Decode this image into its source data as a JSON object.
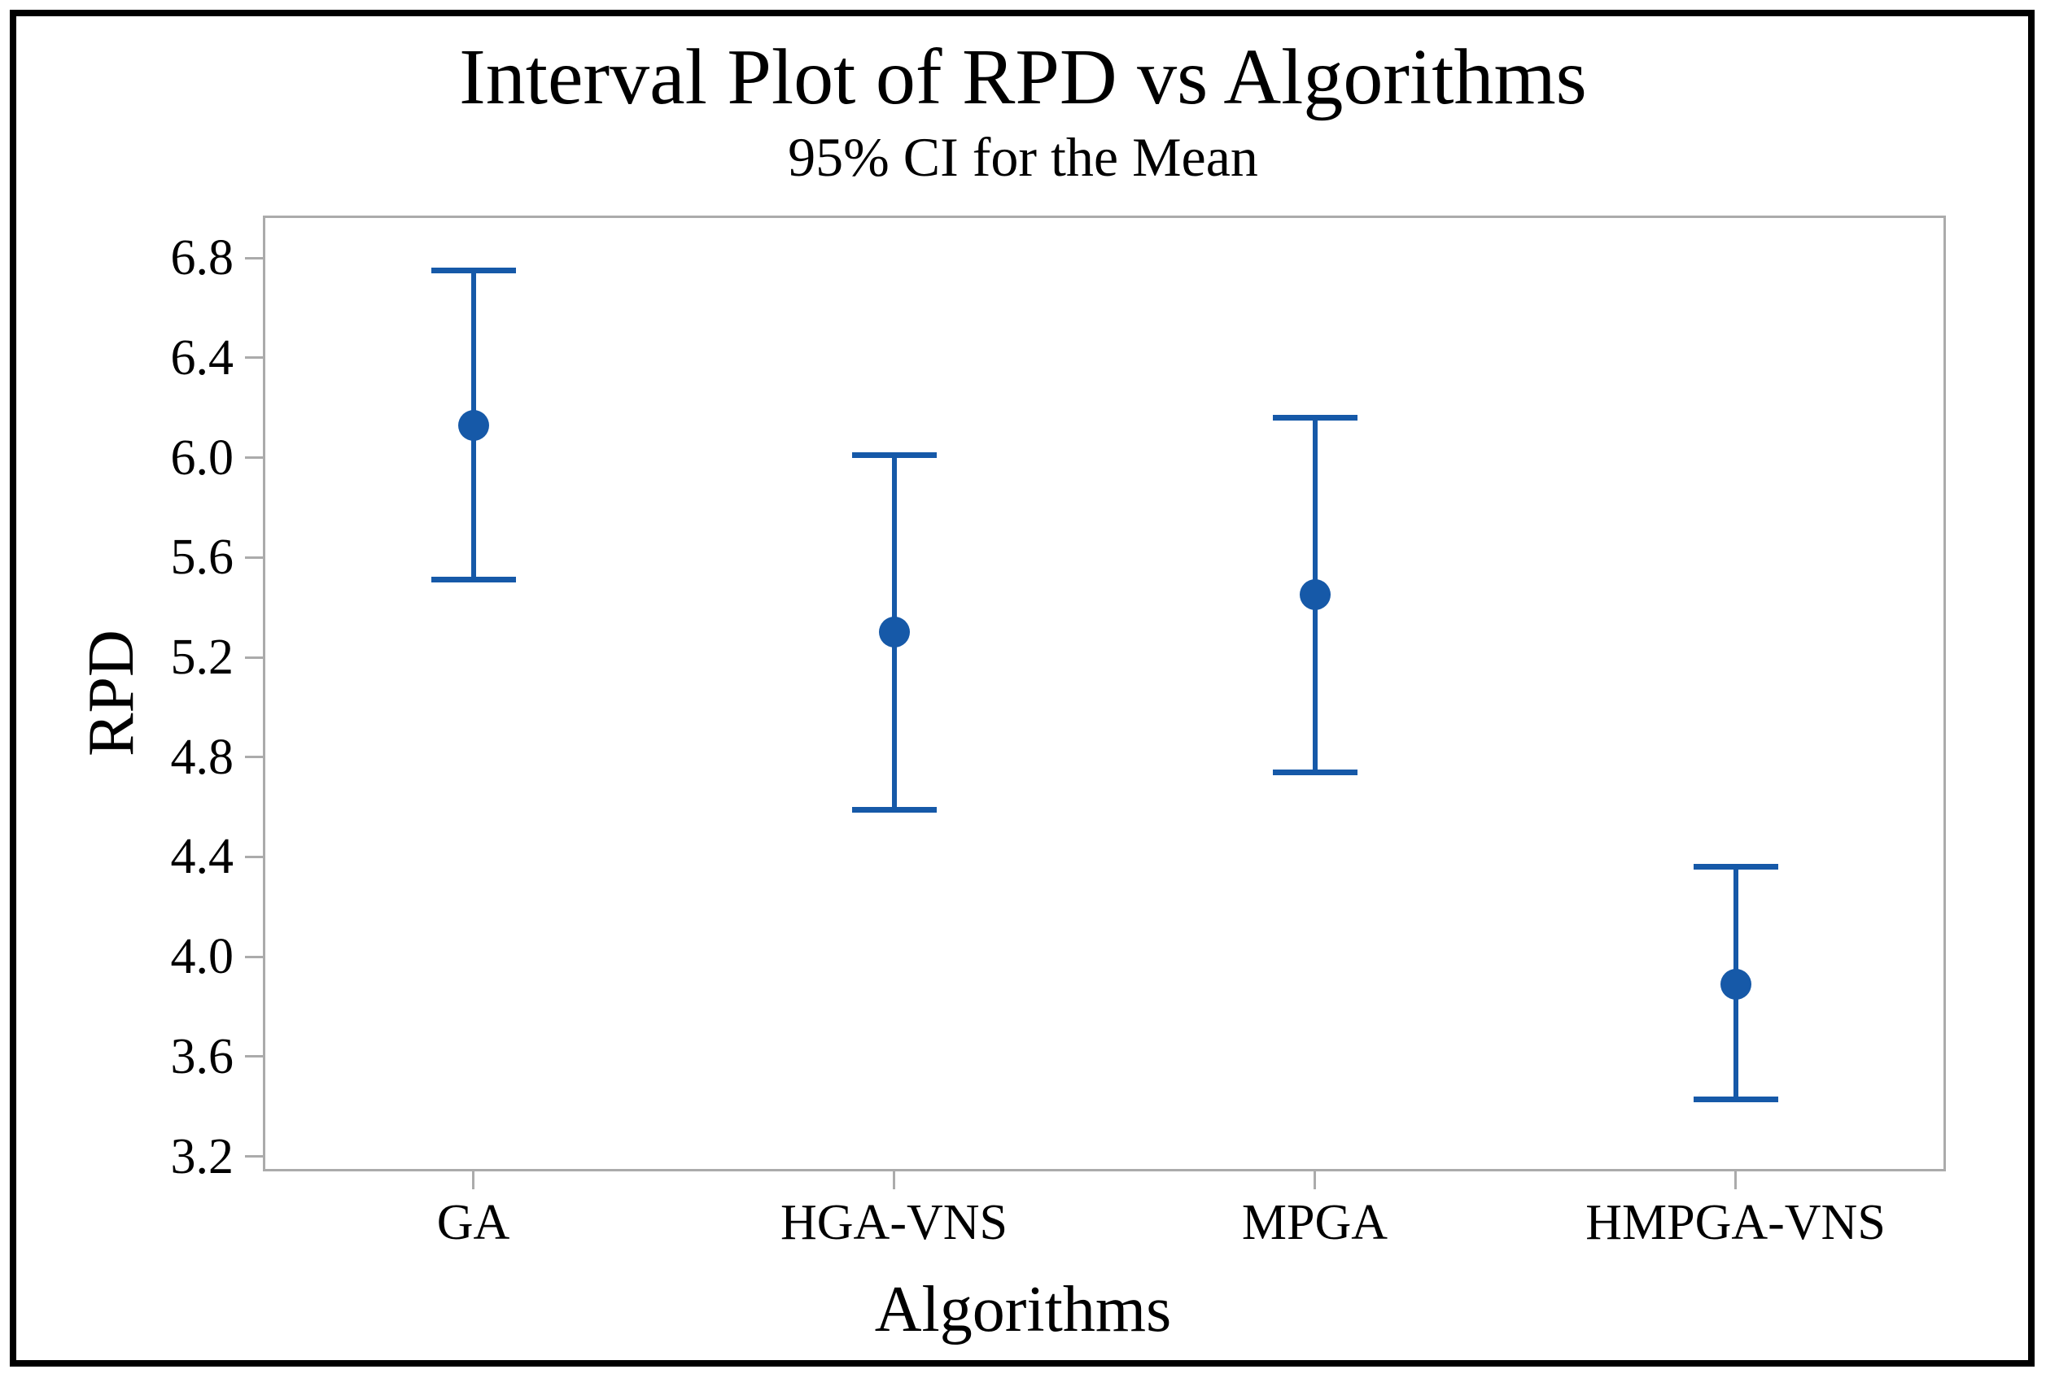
{
  "figure": {
    "kind": "minitab-style interval plot"
  },
  "colors": {
    "interval_blue": "#1659A8",
    "axis_gray": "#ABABAB",
    "text_black": "#000000",
    "background": "#FFFFFF",
    "outer_border": "#000000"
  },
  "chart_data": {
    "type": "interval",
    "title": "Interval Plot of RPD vs Algorithms",
    "subtitle": "95% CI for the Mean",
    "xlabel": "Algorithms",
    "ylabel": "RPD",
    "categories": [
      "GA",
      "HGA-VNS",
      "MPGA",
      "HMPGA-VNS"
    ],
    "points": [
      {
        "category": "GA",
        "mean": 6.13,
        "ci_low": 5.51,
        "ci_high": 6.75
      },
      {
        "category": "HGA-VNS",
        "mean": 5.3,
        "ci_low": 4.59,
        "ci_high": 6.01
      },
      {
        "category": "MPGA",
        "mean": 5.45,
        "ci_low": 4.74,
        "ci_high": 6.16
      },
      {
        "category": "HMPGA-VNS",
        "mean": 3.89,
        "ci_low": 3.43,
        "ci_high": 4.36
      }
    ],
    "yticks": [
      3.2,
      3.6,
      4.0,
      4.4,
      4.8,
      5.2,
      5.6,
      6.0,
      6.4,
      6.8
    ],
    "ylim": [
      3.14,
      6.97
    ],
    "grid": false,
    "legend_position": "none",
    "marker": "filled-circle"
  }
}
